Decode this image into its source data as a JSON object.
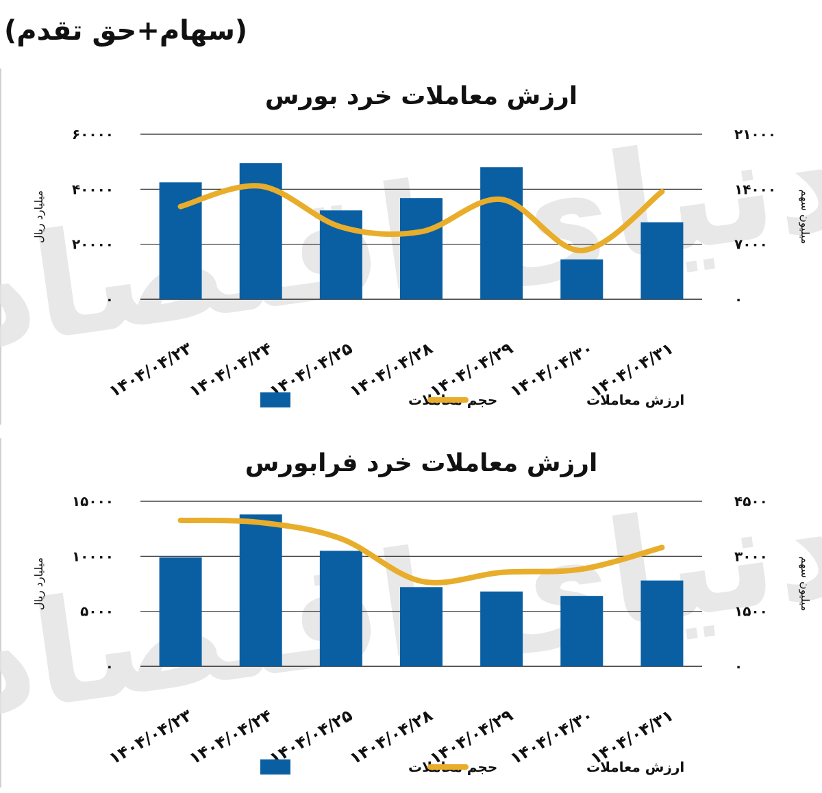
{
  "header": {
    "label": "(سهام+حق تقدم)"
  },
  "colors": {
    "bar": "#0a5fa3",
    "line": "#e8ad2a",
    "grid": "#222222",
    "watermark": "#e3e3e3"
  },
  "watermark": {
    "text": "دنیای اقتصاد"
  },
  "chart_data": [
    {
      "type": "bar",
      "title": "ارزش معاملات خرد بورس",
      "categories": [
        "۱۴۰۴/۰۴/۲۳",
        "۱۴۰۴/۰۴/۲۴",
        "۱۴۰۴/۰۴/۲۵",
        "۱۴۰۴/۰۴/۲۸",
        "۱۴۰۴/۰۴/۲۹",
        "۱۴۰۴/۰۴/۳۰",
        "۱۴۰۴/۰۴/۳۱"
      ],
      "ylabel_left": "میلیارد ریال",
      "ylabel_right": "میلیون سهم",
      "left_ticks": [
        "۰",
        "۲۰۰۰۰",
        "۴۰۰۰۰",
        "۶۰۰۰۰"
      ],
      "right_ticks": [
        "۰",
        "۷۰۰۰",
        "۱۴۰۰۰",
        "۲۱۰۰۰"
      ],
      "ylim_left": [
        0,
        60000
      ],
      "ylim_right": [
        0,
        21000
      ],
      "grid": true,
      "legend_position": "bottom",
      "series": [
        {
          "name": "حجم معاملات",
          "kind": "bar",
          "axis": "left",
          "values": [
            42500,
            49500,
            32300,
            36800,
            48000,
            14500,
            28000
          ]
        },
        {
          "name": "ارزش معاملات",
          "kind": "line",
          "axis": "right",
          "values": [
            11800,
            14400,
            9200,
            8600,
            12700,
            6200,
            13700
          ]
        }
      ]
    },
    {
      "type": "bar",
      "title": "ارزش معاملات خرد فرابورس",
      "categories": [
        "۱۴۰۴/۰۴/۲۳",
        "۱۴۰۴/۰۴/۲۴",
        "۱۴۰۴/۰۴/۲۵",
        "۱۴۰۴/۰۴/۲۸",
        "۱۴۰۴/۰۴/۲۹",
        "۱۴۰۴/۰۴/۳۰",
        "۱۴۰۴/۰۴/۳۱"
      ],
      "ylabel_left": "میلیارد ریال",
      "ylabel_right": "میلیون سهم",
      "left_ticks": [
        "۰",
        "۵۰۰۰",
        "۱۰۰۰۰",
        "۱۵۰۰۰"
      ],
      "right_ticks": [
        "۰",
        "۱۵۰۰",
        "۳۰۰۰",
        "۴۵۰۰"
      ],
      "ylim_left": [
        0,
        15000
      ],
      "ylim_right": [
        0,
        4500
      ],
      "grid": true,
      "legend_position": "bottom",
      "series": [
        {
          "name": "حجم معاملات",
          "kind": "bar",
          "axis": "left",
          "values": [
            9900,
            13800,
            10500,
            7200,
            6800,
            6400,
            7800
          ]
        },
        {
          "name": "ارزش معاملات",
          "kind": "line",
          "axis": "right",
          "values": [
            3980,
            3920,
            3480,
            2320,
            2560,
            2650,
            3240
          ]
        }
      ]
    }
  ]
}
